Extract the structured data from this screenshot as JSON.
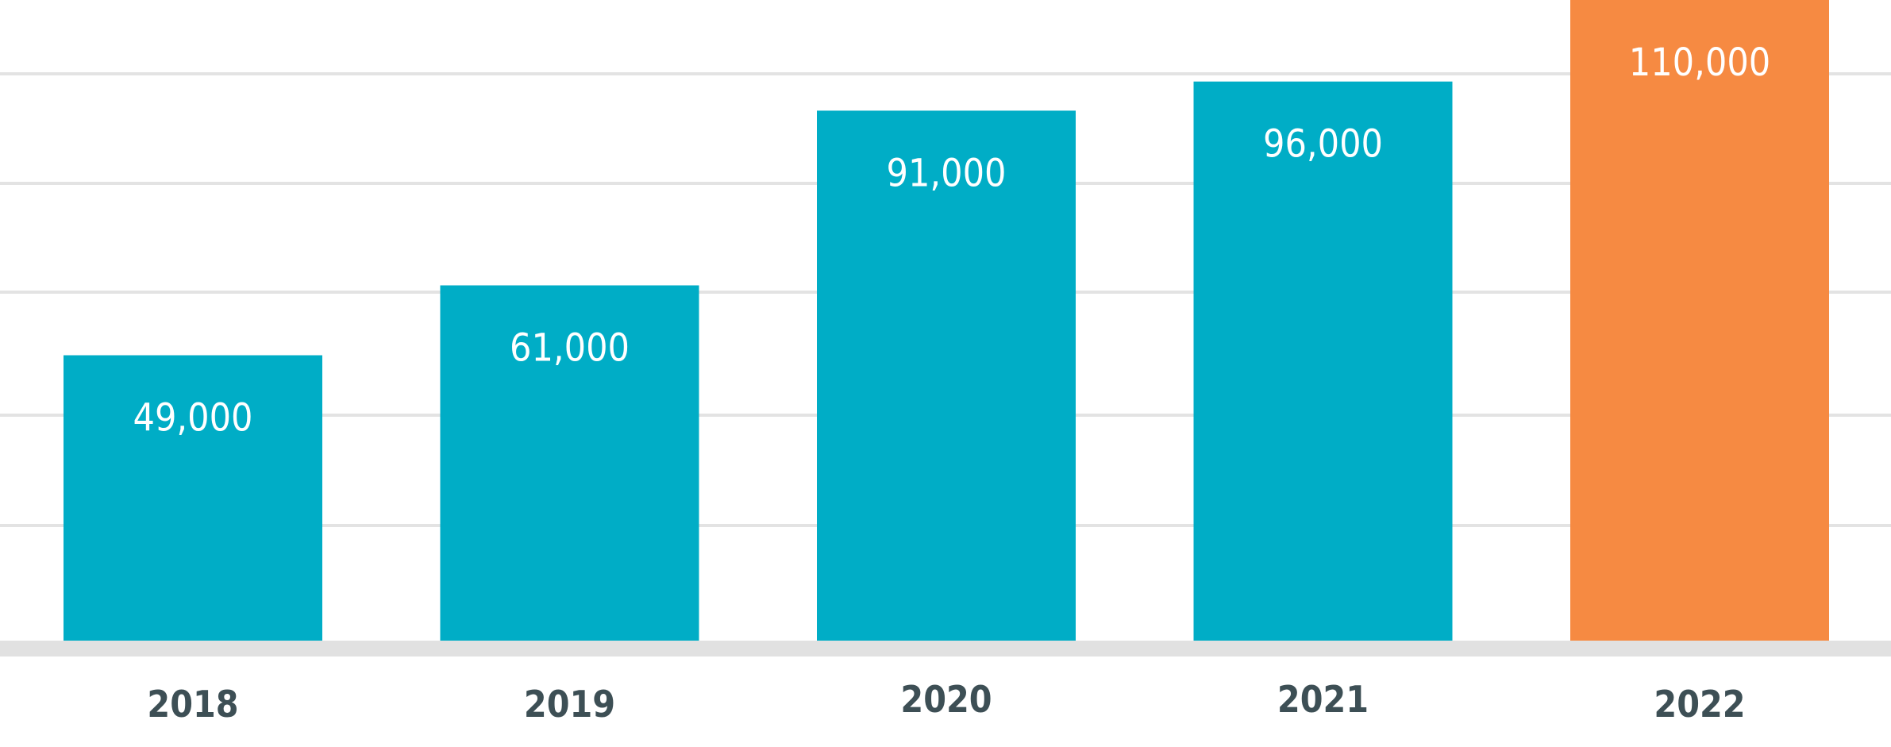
{
  "chart_data": {
    "type": "bar",
    "categories": [
      "2018",
      "2019",
      "2020",
      "2021",
      "2022"
    ],
    "values": [
      49000,
      61000,
      91000,
      96000,
      110000
    ],
    "value_labels": [
      "49,000",
      "61,000",
      "91,000",
      "96,000",
      "110,000"
    ],
    "title": "",
    "xlabel": "",
    "ylabel": "",
    "ylim": [
      0,
      110000
    ],
    "grid": true,
    "legend": "none",
    "colors": {
      "default_bar": "#00adc6",
      "highlight_bar": "#f68a42",
      "highlight_index": 4,
      "gridline": "#e3e3e3",
      "baseline": "#e1e1e1",
      "tick_label": "#3d4f55",
      "bar_label": "#ffffff"
    }
  }
}
